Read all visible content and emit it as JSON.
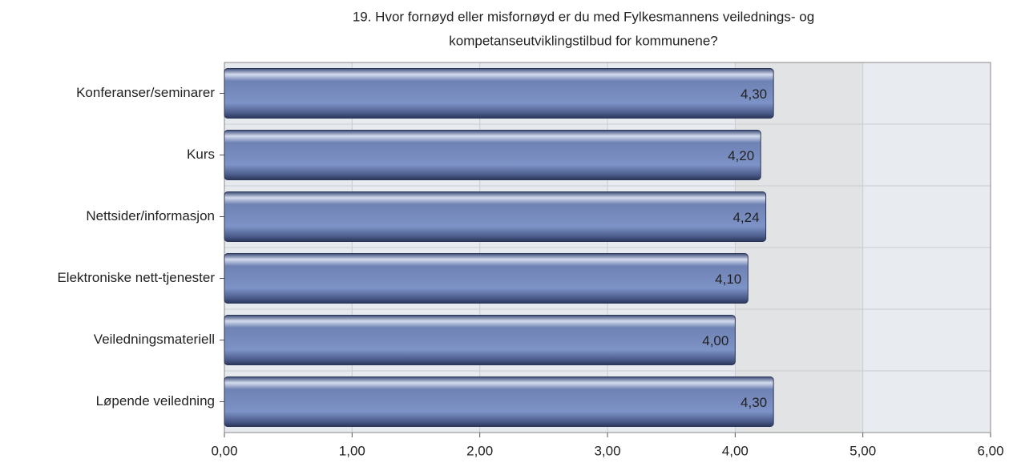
{
  "chart_data": {
    "type": "bar",
    "orientation": "horizontal",
    "title": [
      "19. Hvor fornøyd eller misfornøyd er du med Fylkesmannens veilednings- og",
      "kompetanseutviklingstilbud for kommunene?"
    ],
    "categories": [
      "Konferanser/seminarer",
      "Kurs",
      "Nettsider/informasjon",
      "Elektroniske nett-tjenester",
      "Veiledningsmateriell",
      "Løpende veiledning"
    ],
    "values": [
      4.3,
      4.2,
      4.24,
      4.1,
      4.0,
      4.3
    ],
    "value_labels": [
      "4,30",
      "4,20",
      "4,24",
      "4,10",
      "4,00",
      "4,30"
    ],
    "color": "#5a6c9c",
    "xlim": [
      0,
      6
    ],
    "xticks": [
      {
        "value": 0,
        "label": "0,00"
      },
      {
        "value": 1,
        "label": "1,00"
      },
      {
        "value": 2,
        "label": "2,00"
      },
      {
        "value": 3,
        "label": "3,00"
      },
      {
        "value": 4,
        "label": "4,00"
      },
      {
        "value": 5,
        "label": "5,00"
      },
      {
        "value": 6,
        "label": "6,00"
      }
    ],
    "grid": true
  }
}
